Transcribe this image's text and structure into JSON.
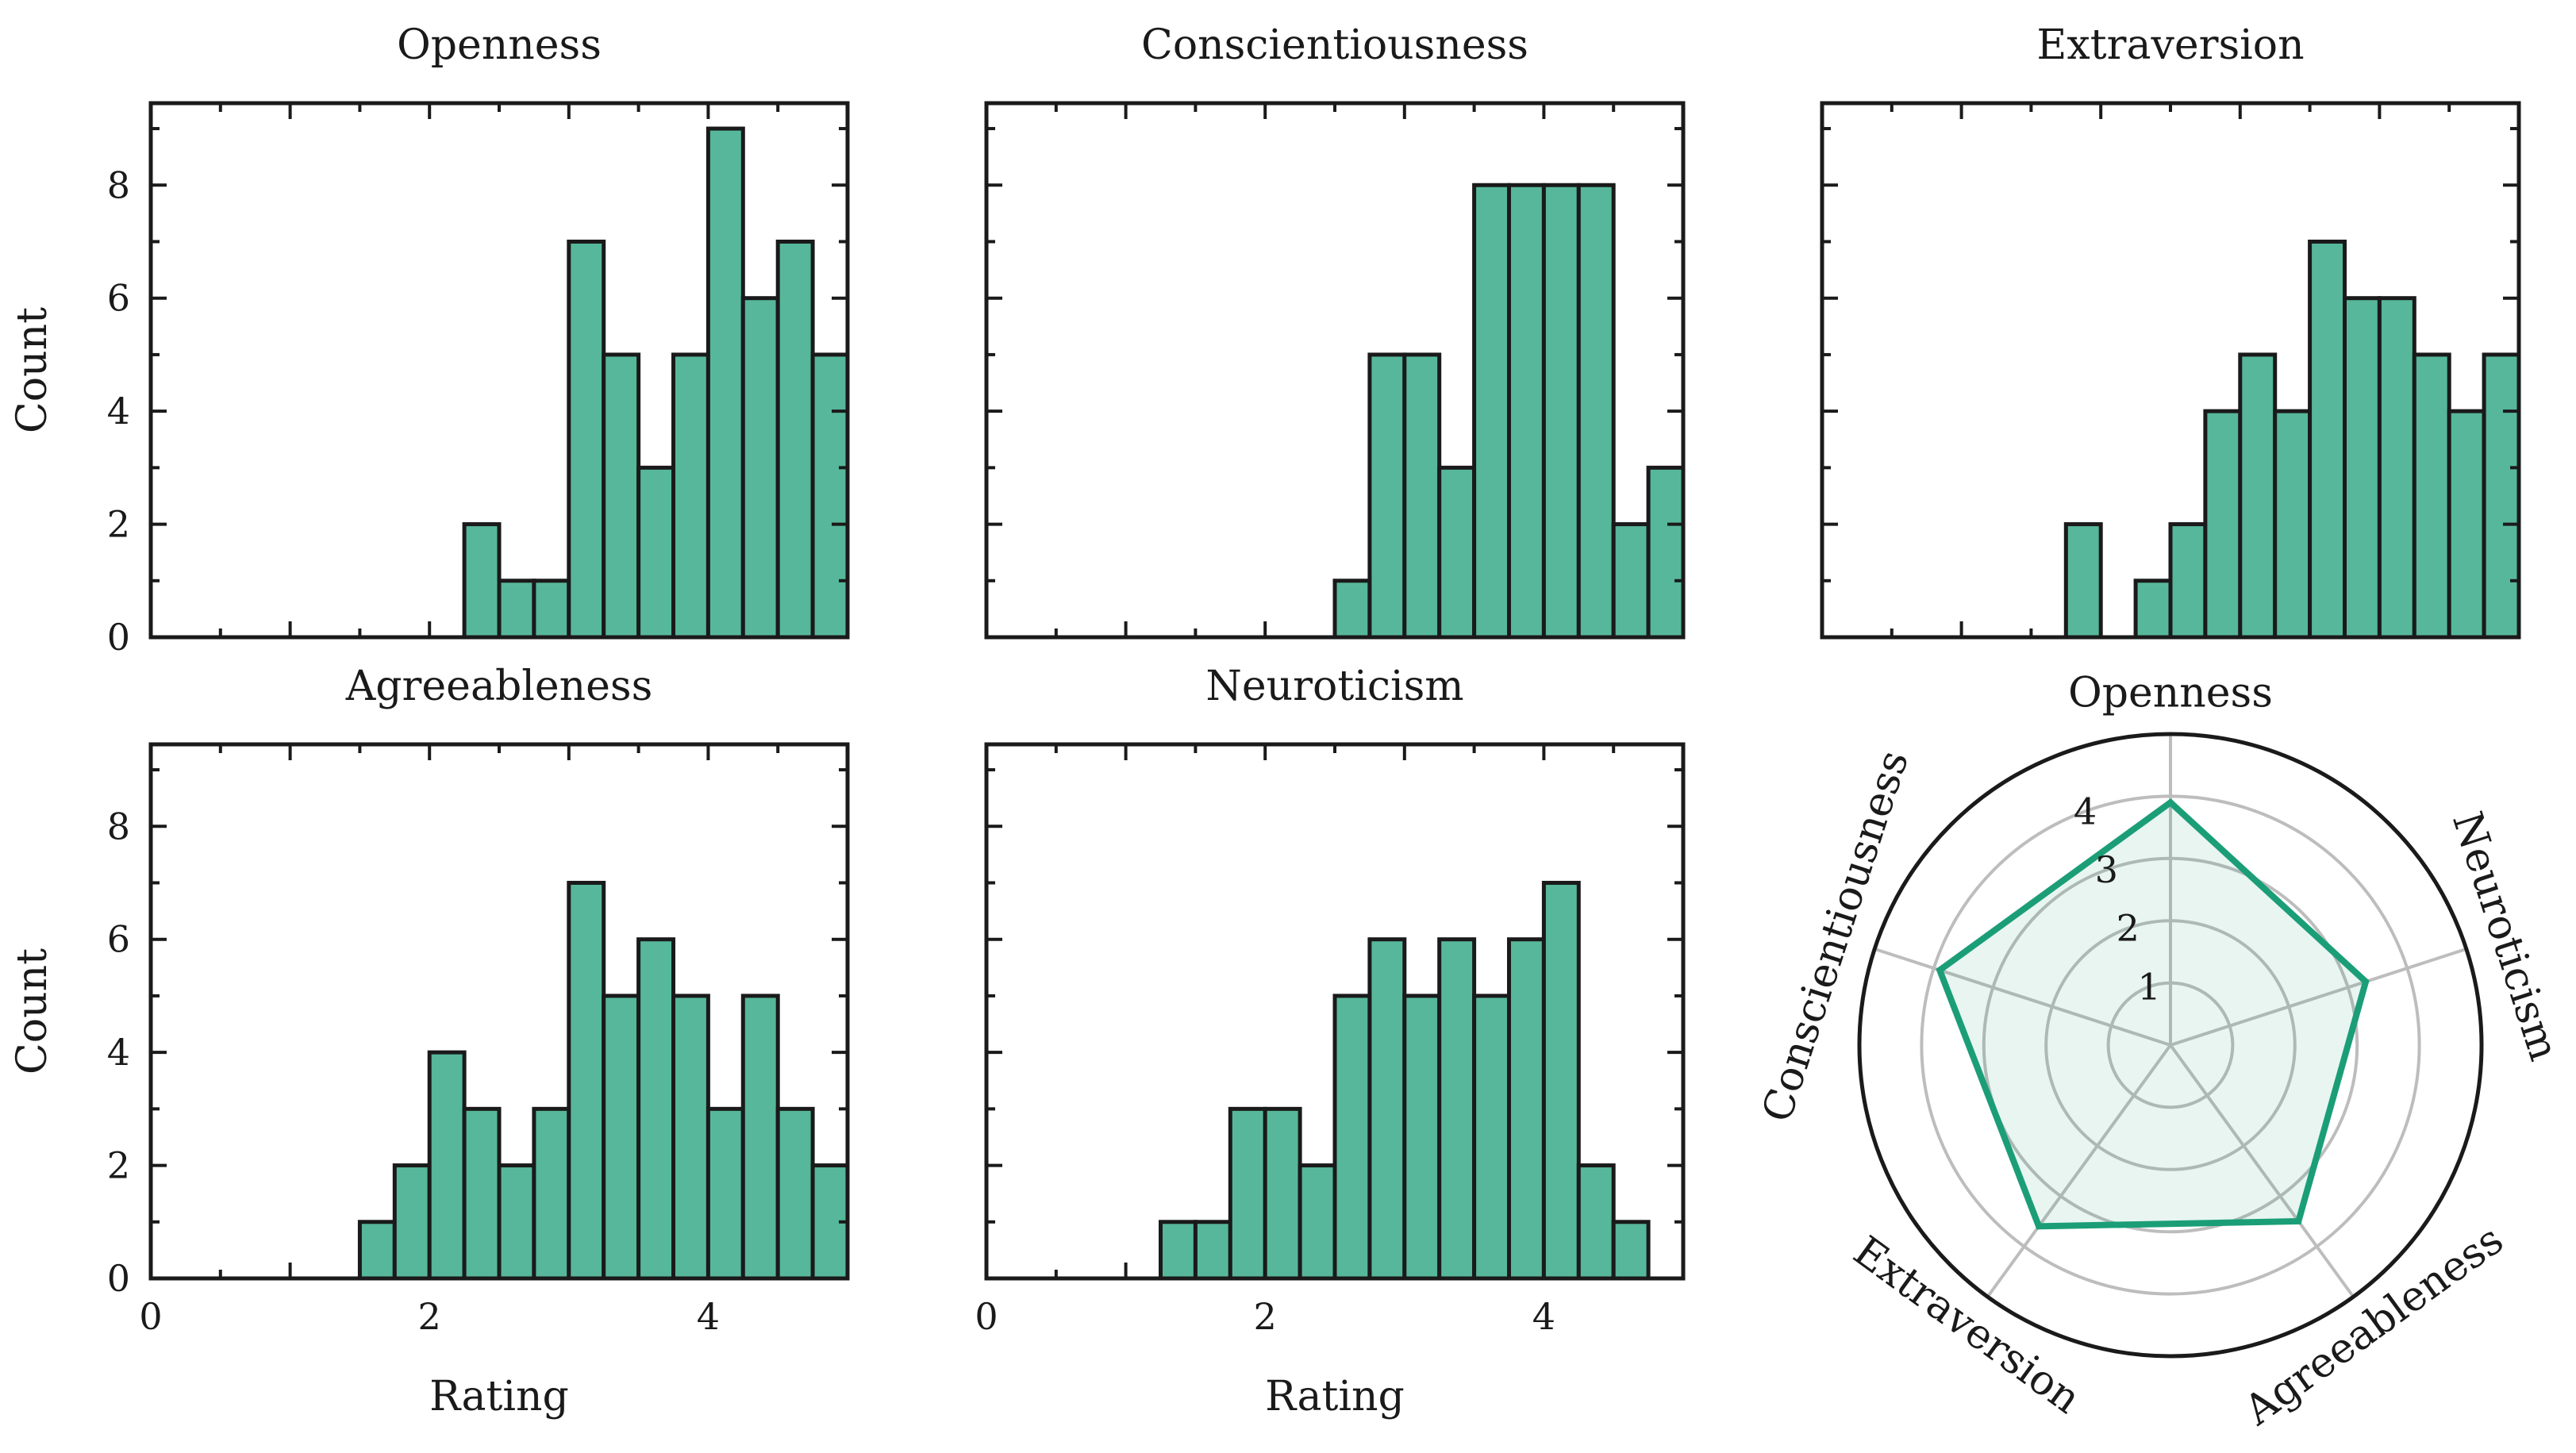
{
  "colors": {
    "bar": "#57b79b",
    "radar_line": "#1b9e77",
    "radar_fill": "#1b9e77",
    "edge": "#1a1a1a",
    "grid": "#bdbdbd"
  },
  "chart_data": [
    {
      "type": "bar",
      "title": "Openness",
      "xlabel": "",
      "ylabel": "Count",
      "xlim": [
        0,
        5
      ],
      "ylim": [
        0,
        9.45
      ],
      "bin_width": 0.25,
      "x_start": 2.25,
      "values": [
        2,
        1,
        1,
        7,
        5,
        3,
        5,
        9,
        6,
        7,
        5
      ],
      "xticks": [],
      "yticks": [
        "0",
        "2",
        "4",
        "6",
        "8"
      ]
    },
    {
      "type": "bar",
      "title": "Conscientiousness",
      "xlabel": "",
      "ylabel": "",
      "xlim": [
        0,
        5
      ],
      "ylim": [
        0,
        9.45
      ],
      "bin_width": 0.25,
      "x_start": 2.5,
      "values": [
        1,
        5,
        5,
        3,
        8,
        8,
        8,
        8,
        2,
        3
      ],
      "xticks": [],
      "yticks": []
    },
    {
      "type": "bar",
      "title": "Extraversion",
      "xlabel": "",
      "ylabel": "",
      "xlim": [
        0,
        5
      ],
      "ylim": [
        0,
        9.45
      ],
      "bin_width": 0.25,
      "x_start": 1.75,
      "values": [
        2,
        0,
        1,
        2,
        4,
        5,
        4,
        7,
        6,
        6,
        5,
        4,
        5
      ],
      "xticks": [],
      "yticks": []
    },
    {
      "type": "bar",
      "title": "Agreeableness",
      "xlabel": "Rating",
      "ylabel": "Count",
      "xlim": [
        0,
        5
      ],
      "ylim": [
        0,
        9.45
      ],
      "bin_width": 0.25,
      "x_start": 1.5,
      "values": [
        1,
        2,
        4,
        3,
        2,
        3,
        7,
        5,
        6,
        5,
        3,
        5,
        3,
        2
      ],
      "xticks": [
        "0",
        "2",
        "4"
      ],
      "yticks": [
        "0",
        "2",
        "4",
        "6",
        "8"
      ]
    },
    {
      "type": "bar",
      "title": "Neuroticism",
      "xlabel": "Rating",
      "ylabel": "",
      "xlim": [
        0,
        5
      ],
      "ylim": [
        0,
        9.45
      ],
      "bin_width": 0.25,
      "x_start": 1.25,
      "values": [
        1,
        1,
        3,
        3,
        2,
        5,
        6,
        5,
        6,
        5,
        6,
        7,
        2,
        1
      ],
      "xticks": [
        "0",
        "2",
        "4"
      ],
      "yticks": []
    },
    {
      "type": "radar",
      "categories": [
        "Openness",
        "Neuroticism",
        "Agreeableness",
        "Extraversion",
        "Conscientiousness"
      ],
      "values": [
        3.9,
        3.3,
        3.5,
        3.6,
        3.9
      ],
      "rlim": [
        0,
        5
      ],
      "rticks": [
        "1",
        "2",
        "3",
        "4"
      ]
    }
  ]
}
